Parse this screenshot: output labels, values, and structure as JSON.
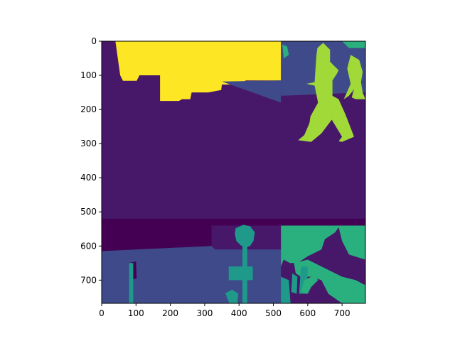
{
  "chart_data": {
    "type": "heatmap",
    "title": "",
    "xlabel": "",
    "ylabel": "",
    "xlim": [
      0,
      768
    ],
    "ylim": [
      768,
      0
    ],
    "x_ticks": [
      0,
      100,
      200,
      300,
      400,
      500,
      600,
      700
    ],
    "y_ticks": [
      0,
      100,
      200,
      300,
      400,
      500,
      600,
      700
    ],
    "grid": false,
    "colormap": "viridis",
    "colors": {
      "background_purple": "#471769",
      "dark_purple": "#440154",
      "slate_blue": "#3e4a89",
      "teal": "#1f9a8a",
      "green": "#2ab07f",
      "lime": "#a1da38",
      "yellow": "#fde725",
      "figure_background": "#ffffff"
    },
    "regions": [
      {
        "label_color": "background_purple",
        "polygon": [
          [
            0,
            0
          ],
          [
            768,
            0
          ],
          [
            768,
            768
          ],
          [
            0,
            768
          ]
        ]
      },
      {
        "label_color": "yellow",
        "polygon": [
          [
            40,
            0
          ],
          [
            522,
            0
          ],
          [
            522,
            115
          ],
          [
            420,
            115
          ],
          [
            415,
            118
          ],
          [
            410,
            127
          ],
          [
            350,
            127
          ],
          [
            348,
            143
          ],
          [
            310,
            150
          ],
          [
            262,
            150
          ],
          [
            258,
            170
          ],
          [
            234,
            170
          ],
          [
            225,
            175
          ],
          [
            170,
            175
          ],
          [
            170,
            100
          ],
          [
            110,
            100
          ],
          [
            102,
            116
          ],
          [
            62,
            116
          ],
          [
            54,
            100
          ],
          [
            40,
            0
          ]
        ]
      },
      {
        "label_color": "slate_blue",
        "polygon": [
          [
            522,
            0
          ],
          [
            768,
            0
          ],
          [
            768,
            150
          ],
          [
            522,
            160
          ]
        ]
      },
      {
        "label_color": "slate_blue",
        "polygon": [
          [
            350,
            118
          ],
          [
            522,
            115
          ],
          [
            522,
            160
          ],
          [
            522,
            180
          ]
        ]
      },
      {
        "label_color": "lime",
        "polygon": [
          [
            645,
            5
          ],
          [
            665,
            25
          ],
          [
            665,
            60
          ],
          [
            690,
            85
          ],
          [
            685,
            95
          ],
          [
            672,
            115
          ],
          [
            672,
            160
          ],
          [
            690,
            170
          ],
          [
            710,
            215
          ],
          [
            735,
            280
          ],
          [
            700,
            295
          ],
          [
            690,
            293
          ],
          [
            700,
            280
          ],
          [
            670,
            230
          ],
          [
            640,
            270
          ],
          [
            610,
            295
          ],
          [
            572,
            290
          ],
          [
            590,
            275
          ],
          [
            605,
            240
          ],
          [
            608,
            220
          ],
          [
            630,
            180
          ],
          [
            620,
            130
          ],
          [
            596,
            125
          ],
          [
            620,
            120
          ],
          [
            625,
            45
          ],
          [
            628,
            20
          ]
        ]
      },
      {
        "label_color": "lime",
        "polygon": [
          [
            725,
            40
          ],
          [
            750,
            55
          ],
          [
            760,
            90
          ],
          [
            755,
            120
          ],
          [
            760,
            150
          ],
          [
            768,
            170
          ],
          [
            740,
            170
          ],
          [
            728,
            165
          ],
          [
            735,
            140
          ],
          [
            720,
            160
          ],
          [
            705,
            170
          ],
          [
            725,
            125
          ],
          [
            715,
            80
          ]
        ]
      },
      {
        "label_color": "green",
        "polygon": [
          [
            526,
            10
          ],
          [
            540,
            15
          ],
          [
            545,
            40
          ],
          [
            530,
            50
          ]
        ]
      },
      {
        "label_color": "green",
        "polygon": [
          [
            700,
            0
          ],
          [
            768,
            0
          ],
          [
            768,
            20
          ],
          [
            720,
            20
          ]
        ]
      },
      {
        "label_color": "dark_purple",
        "polygon": [
          [
            0,
            540
          ],
          [
            768,
            540
          ],
          [
            768,
            520
          ],
          [
            0,
            520
          ]
        ]
      },
      {
        "label_color": "dark_purple",
        "polygon": [
          [
            0,
            540
          ],
          [
            320,
            540
          ],
          [
            320,
            600
          ],
          [
            0,
            615
          ]
        ]
      },
      {
        "label_color": "slate_blue",
        "polygon": [
          [
            0,
            615
          ],
          [
            320,
            600
          ],
          [
            330,
            610
          ],
          [
            522,
            610
          ],
          [
            522,
            768
          ],
          [
            0,
            768
          ]
        ]
      },
      {
        "label_color": "dark_purple",
        "polygon": [
          [
            80,
            650
          ],
          [
            100,
            645
          ],
          [
            102,
            695
          ],
          [
            88,
            698
          ]
        ]
      },
      {
        "label_color": "teal",
        "polygon": [
          [
            80,
            650
          ],
          [
            92,
            650
          ],
          [
            92,
            768
          ],
          [
            80,
            768
          ]
        ]
      },
      {
        "label_color": "teal",
        "polygon": [
          [
            390,
            548
          ],
          [
            412,
            538
          ],
          [
            432,
            542
          ],
          [
            446,
            560
          ],
          [
            442,
            585
          ],
          [
            432,
            600
          ],
          [
            418,
            605
          ],
          [
            405,
            598
          ],
          [
            392,
            585
          ],
          [
            388,
            565
          ]
        ]
      },
      {
        "label_color": "teal",
        "polygon": [
          [
            410,
            600
          ],
          [
            424,
            600
          ],
          [
            424,
            660
          ],
          [
            440,
            660
          ],
          [
            440,
            700
          ],
          [
            424,
            700
          ],
          [
            424,
            768
          ],
          [
            410,
            768
          ],
          [
            410,
            700
          ],
          [
            370,
            700
          ],
          [
            370,
            660
          ],
          [
            410,
            660
          ]
        ]
      },
      {
        "label_color": "teal",
        "polygon": [
          [
            360,
            738
          ],
          [
            380,
            728
          ],
          [
            398,
            740
          ],
          [
            395,
            768
          ],
          [
            372,
            768
          ]
        ]
      },
      {
        "label_color": "green",
        "polygon": [
          [
            522,
            540
          ],
          [
            768,
            540
          ],
          [
            768,
            640
          ],
          [
            720,
            625
          ],
          [
            700,
            585
          ],
          [
            690,
            545
          ],
          [
            680,
            560
          ],
          [
            650,
            580
          ],
          [
            640,
            610
          ],
          [
            600,
            630
          ],
          [
            570,
            650
          ],
          [
            548,
            650
          ],
          [
            530,
            640
          ],
          [
            522,
            660
          ]
        ]
      },
      {
        "label_color": "green",
        "polygon": [
          [
            560,
            650
          ],
          [
            600,
            640
          ],
          [
            640,
            660
          ],
          [
            700,
            690
          ],
          [
            740,
            700
          ],
          [
            768,
            715
          ],
          [
            768,
            768
          ],
          [
            700,
            768
          ],
          [
            660,
            740
          ],
          [
            640,
            700
          ],
          [
            610,
            690
          ],
          [
            580,
            690
          ],
          [
            565,
            680
          ]
        ]
      },
      {
        "label_color": "teal",
        "polygon": [
          [
            555,
            680
          ],
          [
            570,
            690
          ],
          [
            568,
            740
          ],
          [
            552,
            735
          ]
        ]
      },
      {
        "label_color": "teal",
        "polygon": [
          [
            522,
            690
          ],
          [
            545,
            700
          ],
          [
            550,
            768
          ],
          [
            522,
            768
          ]
        ]
      },
      {
        "label_color": "teal",
        "polygon": [
          [
            580,
            660
          ],
          [
            600,
            660
          ],
          [
            598,
            740
          ],
          [
            575,
            740
          ]
        ]
      },
      {
        "label_color": "green",
        "polygon": [
          [
            590,
            700
          ],
          [
            620,
            685
          ],
          [
            630,
            700
          ],
          [
            610,
            720
          ],
          [
            600,
            740
          ],
          [
            580,
            735
          ]
        ]
      }
    ]
  }
}
